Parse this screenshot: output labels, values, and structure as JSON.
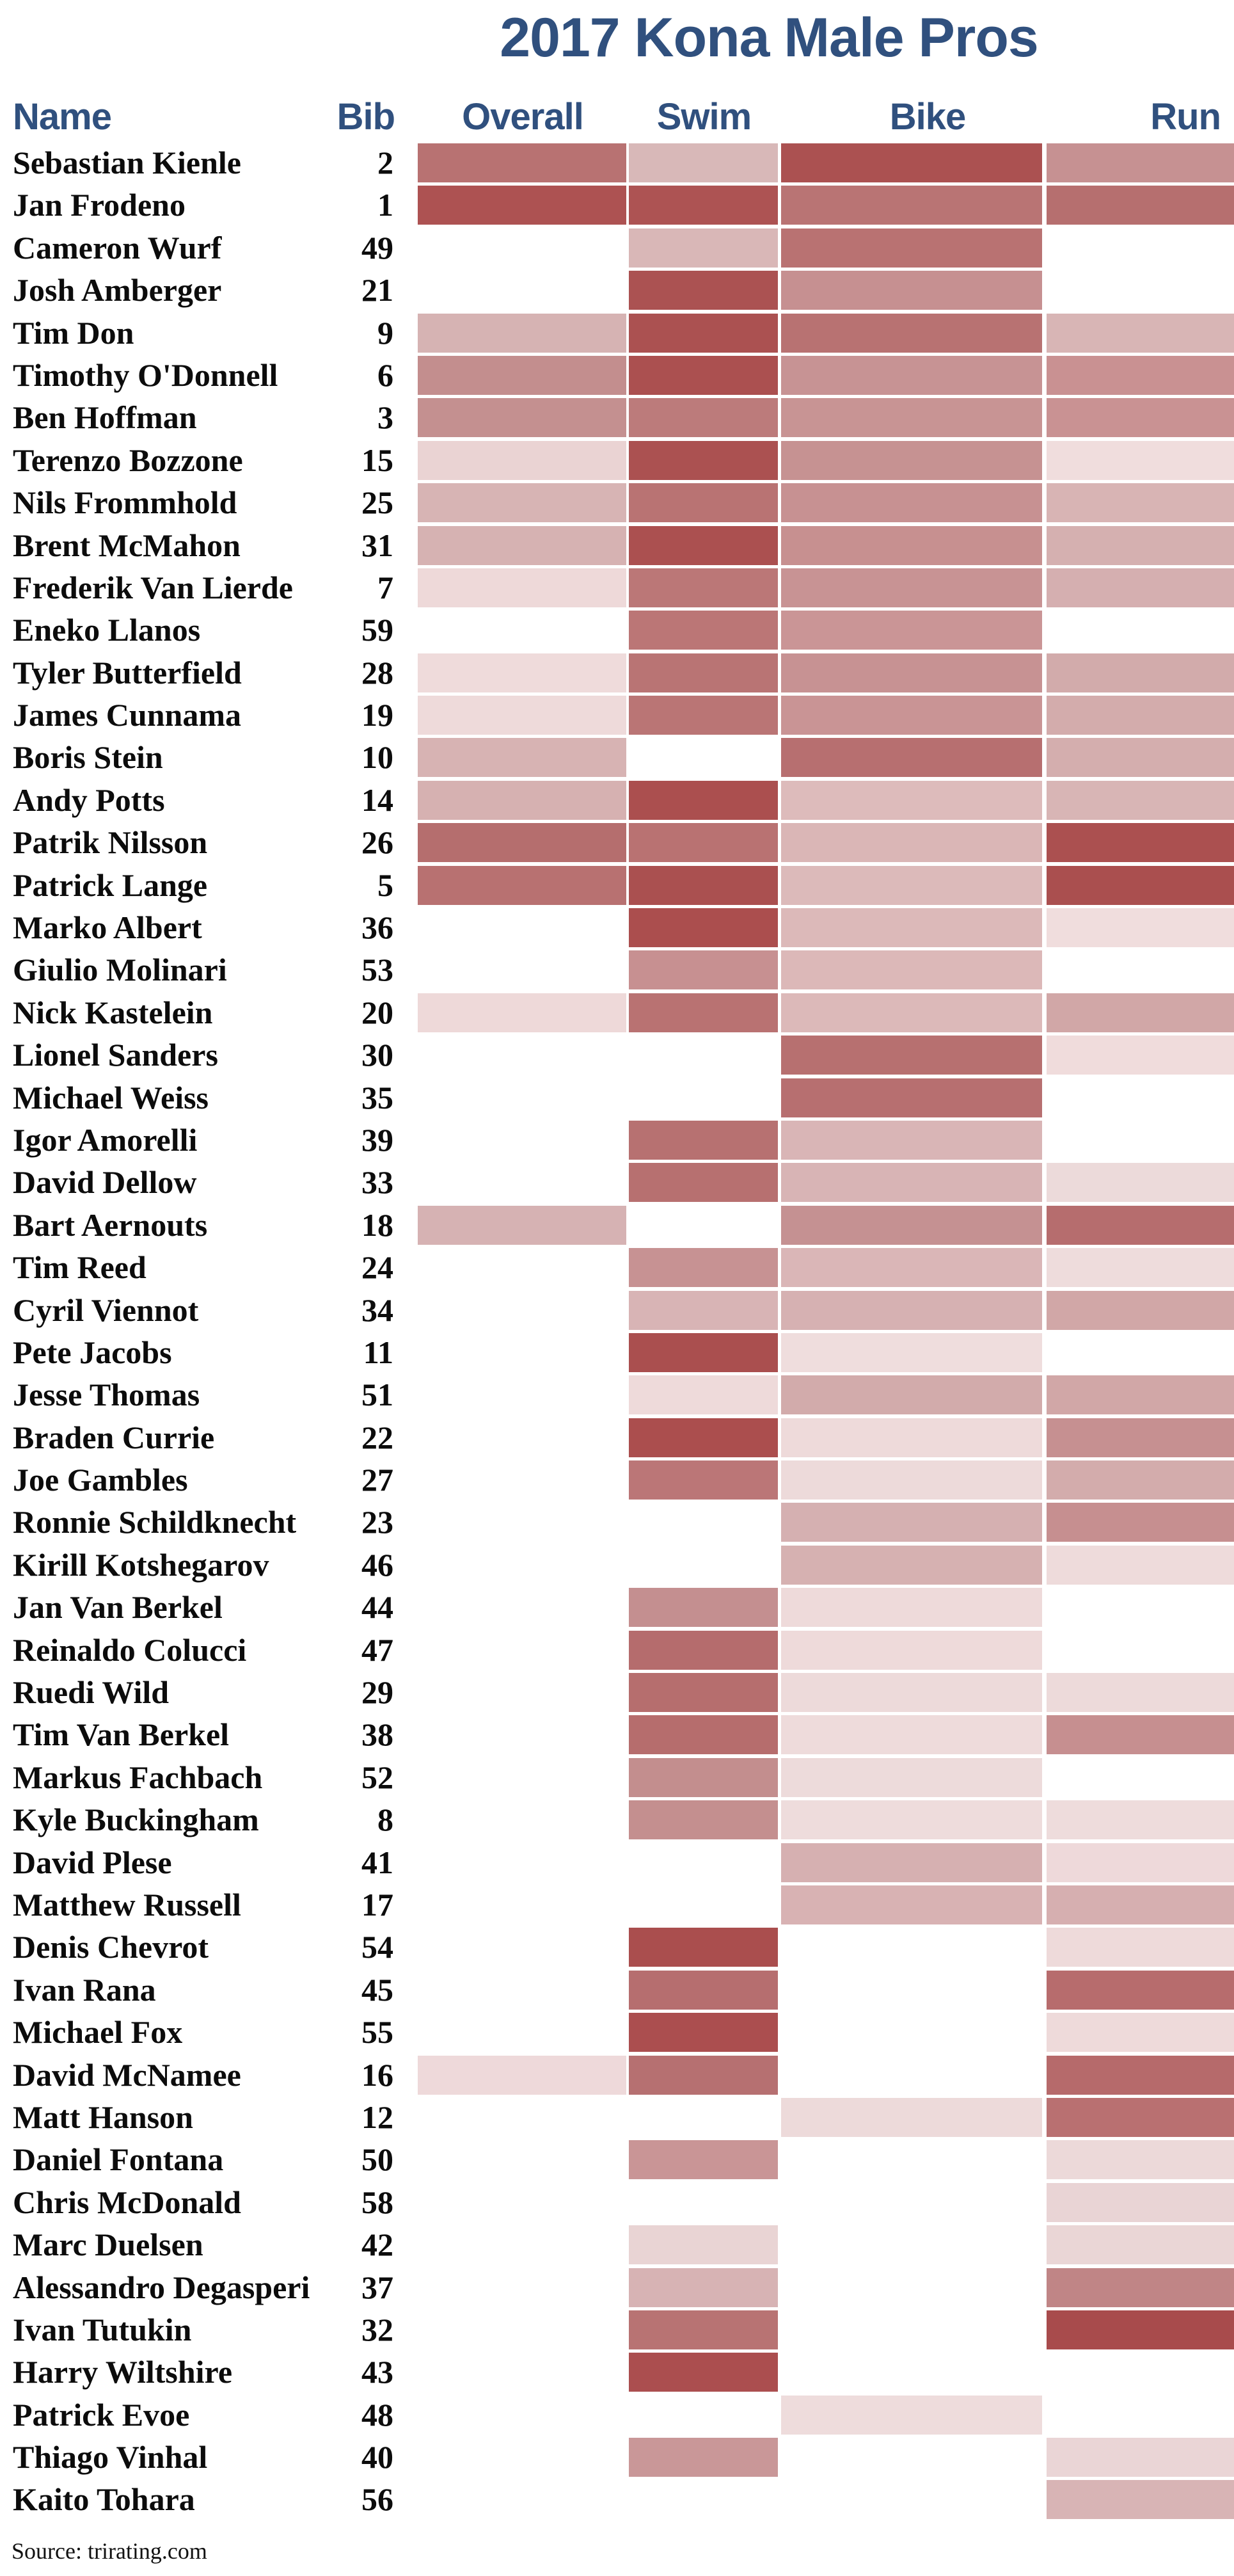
{
  "title": "2017 Kona Male Pros",
  "header": {
    "name": "Name",
    "bib": "Bib",
    "overall": "Overall",
    "swim": "Swim",
    "bike": "Bike",
    "run": "Run"
  },
  "source": "Source: trirating.com",
  "colors": {
    "heading_blue": "#30507e",
    "text_black": "#0c0c0c",
    "background": "#ffffff",
    "scale_min": "#f0dddd",
    "scale_max": "#a84b4c"
  },
  "chart_data": {
    "type": "heatmap",
    "title": "2017 Kona Male Pros",
    "columns": [
      "Overall",
      "Swim",
      "Bike",
      "Run"
    ],
    "legend_position": "none",
    "cell_encoding": "background hex color; null = no rating (blank cell); darker red = stronger rating",
    "rows": [
      {
        "name": "Sebastian Kienle",
        "bib": "2",
        "cells": {
          "overall": "#b87272",
          "swim": "#d8b8b8",
          "bike": "#ab5151",
          "run": "#c69192"
        }
      },
      {
        "name": "Jan Frodeno",
        "bib": "1",
        "cells": {
          "overall": "#ad5252",
          "swim": "#ad5353",
          "bike": "#b97474",
          "run": "#b66f6f"
        }
      },
      {
        "name": "Cameron Wurf",
        "bib": "49",
        "cells": {
          "overall": null,
          "swim": "#d9b7b7",
          "bike": "#b97272",
          "run": null
        }
      },
      {
        "name": "Josh Amberger",
        "bib": "21",
        "cells": {
          "overall": null,
          "swim": "#ab5252",
          "bike": "#c69091",
          "run": null
        }
      },
      {
        "name": "Tim Don",
        "bib": "9",
        "cells": {
          "overall": "#d6b3b3",
          "swim": "#ab5151",
          "bike": "#b87272",
          "run": "#d8b5b5"
        }
      },
      {
        "name": "Timothy O'Donnell",
        "bib": "6",
        "cells": {
          "overall": "#c38e8e",
          "swim": "#ab5050",
          "bike": "#c79394",
          "run": "#c99192"
        }
      },
      {
        "name": "Ben Hoffman",
        "bib": "3",
        "cells": {
          "overall": "#c49090",
          "swim": "#bc7b7b",
          "bike": "#c89494",
          "run": "#c99293"
        }
      },
      {
        "name": "Terenzo Bozzone",
        "bib": "15",
        "cells": {
          "overall": "#ead3d3",
          "swim": "#ab5151",
          "bike": "#c69292",
          "run": "#f0dddd"
        }
      },
      {
        "name": "Nils Frommhold",
        "bib": "25",
        "cells": {
          "overall": "#d7b4b4",
          "swim": "#b97373",
          "bike": "#c79192",
          "run": "#d8b4b4"
        }
      },
      {
        "name": "Brent McMahon",
        "bib": "31",
        "cells": {
          "overall": "#d6b2b2",
          "swim": "#ab5050",
          "bike": "#c79090",
          "run": "#d5b0b0"
        }
      },
      {
        "name": "Frederik Van Lierde",
        "bib": "7",
        "cells": {
          "overall": "#eed9d9",
          "swim": "#bb7777",
          "bike": "#c89394",
          "run": "#d5afb0"
        }
      },
      {
        "name": "Eneko Llanos",
        "bib": "59",
        "cells": {
          "overall": null,
          "swim": "#bb7676",
          "bike": "#ca9596",
          "run": null
        }
      },
      {
        "name": "Tyler Butterfield",
        "bib": "28",
        "cells": {
          "overall": "#efdbdb",
          "swim": "#b97474",
          "bike": "#c79293",
          "run": "#d2abab"
        }
      },
      {
        "name": "James Cunnama",
        "bib": "19",
        "cells": {
          "overall": "#eedada",
          "swim": "#ba7575",
          "bike": "#c99495",
          "run": "#d3acac"
        }
      },
      {
        "name": "Boris Stein",
        "bib": "10",
        "cells": {
          "overall": "#d7b3b3",
          "swim": null,
          "bike": "#b76f70",
          "run": "#d4aeae"
        }
      },
      {
        "name": "Andy Potts",
        "bib": "14",
        "cells": {
          "overall": "#d6b1b1",
          "swim": "#ab4f4f",
          "bike": "#ddbbbb",
          "run": "#d8b5b5"
        }
      },
      {
        "name": "Patrik Nilsson",
        "bib": "26",
        "cells": {
          "overall": "#b56e6e",
          "swim": "#b97272",
          "bike": "#dab6b6",
          "run": "#ab5050"
        }
      },
      {
        "name": "Patrick Lange",
        "bib": "5",
        "cells": {
          "overall": "#b87171",
          "swim": "#aa5050",
          "bike": "#dcbaba",
          "run": "#aa4f4f"
        }
      },
      {
        "name": "Marko Albert",
        "bib": "36",
        "cells": {
          "overall": null,
          "swim": "#ab4e4e",
          "bike": "#dcb9b9",
          "run": "#f0dddd"
        }
      },
      {
        "name": "Giulio Molinari",
        "bib": "53",
        "cells": {
          "overall": null,
          "swim": "#c79091",
          "bike": "#dcb8b8",
          "run": null
        }
      },
      {
        "name": "Nick Kastelein",
        "bib": "20",
        "cells": {
          "overall": "#eed9d9",
          "swim": "#b97272",
          "bike": "#dcb9b9",
          "run": "#d1a7a7"
        }
      },
      {
        "name": "Lionel Sanders",
        "bib": "30",
        "cells": {
          "overall": null,
          "swim": null,
          "bike": "#b77070",
          "run": "#f0dcdc"
        }
      },
      {
        "name": "Michael Weiss",
        "bib": "35",
        "cells": {
          "overall": null,
          "swim": null,
          "bike": "#b76f70",
          "run": null
        }
      },
      {
        "name": "Igor Amorelli",
        "bib": "39",
        "cells": {
          "overall": null,
          "swim": "#b77171",
          "bike": "#d9b5b6",
          "run": null
        }
      },
      {
        "name": "David Dellow",
        "bib": "33",
        "cells": {
          "overall": null,
          "swim": "#b77070",
          "bike": "#d8b4b5",
          "run": "#ecdada"
        }
      },
      {
        "name": "Bart Aernouts",
        "bib": "18",
        "cells": {
          "overall": "#d6b2b3",
          "swim": null,
          "bike": "#c59192",
          "run": "#b66d6e"
        }
      },
      {
        "name": "Tim Reed",
        "bib": "24",
        "cells": {
          "overall": null,
          "swim": "#c79293",
          "bike": "#dab6b7",
          "run": "#eedcdc"
        }
      },
      {
        "name": "Cyril Viennot",
        "bib": "34",
        "cells": {
          "overall": null,
          "swim": "#d8b4b5",
          "bike": "#d6b1b2",
          "run": "#d1a7a7"
        }
      },
      {
        "name": "Pete Jacobs",
        "bib": "11",
        "cells": {
          "overall": null,
          "swim": "#aa4f4f",
          "bike": "#efdddd",
          "run": null
        }
      },
      {
        "name": "Jesse Thomas",
        "bib": "51",
        "cells": {
          "overall": null,
          "swim": "#eedada",
          "bike": "#d2abab",
          "run": "#d1a7a7"
        }
      },
      {
        "name": "Braden Currie",
        "bib": "22",
        "cells": {
          "overall": null,
          "swim": "#ab4e4e",
          "bike": "#eedada",
          "run": "#c69091"
        }
      },
      {
        "name": "Joe Gambles",
        "bib": "27",
        "cells": {
          "overall": null,
          "swim": "#bb7677",
          "bike": "#eddada",
          "run": "#d3acac"
        }
      },
      {
        "name": "Ronnie Schildknecht",
        "bib": "23",
        "cells": {
          "overall": null,
          "swim": null,
          "bike": "#d5b0b1",
          "run": "#c68f90"
        }
      },
      {
        "name": "Kirill Kotshegarov",
        "bib": "46",
        "cells": {
          "overall": null,
          "swim": null,
          "bike": "#d6b1b1",
          "run": "#eedbdb"
        }
      },
      {
        "name": "Jan Van Berkel",
        "bib": "44",
        "cells": {
          "overall": null,
          "swim": "#c48f90",
          "bike": "#eedada",
          "run": null
        }
      },
      {
        "name": "Reinaldo Colucci",
        "bib": "47",
        "cells": {
          "overall": null,
          "swim": "#b56c6d",
          "bike": "#eedada",
          "run": null
        }
      },
      {
        "name": "Ruedi Wild",
        "bib": "29",
        "cells": {
          "overall": null,
          "swim": "#b66e6e",
          "bike": "#eddada",
          "run": "#eddada"
        }
      },
      {
        "name": "Tim Van Berkel",
        "bib": "38",
        "cells": {
          "overall": null,
          "swim": "#b66d6d",
          "bike": "#eedbdb",
          "run": "#c68f90"
        }
      },
      {
        "name": "Markus Fachbach",
        "bib": "52",
        "cells": {
          "overall": null,
          "swim": "#c38e8e",
          "bike": "#eddbdb",
          "run": null
        }
      },
      {
        "name": "Kyle Buckingham",
        "bib": "8",
        "cells": {
          "overall": null,
          "swim": "#c48f8f",
          "bike": "#eedcdc",
          "run": "#eedcdc"
        }
      },
      {
        "name": "David Plese",
        "bib": "41",
        "cells": {
          "overall": null,
          "swim": null,
          "bike": "#d6b0b1",
          "run": "#eed9da"
        }
      },
      {
        "name": "Matthew Russell",
        "bib": "17",
        "cells": {
          "overall": null,
          "swim": null,
          "bike": "#d8b2b3",
          "run": "#d6afb0"
        }
      },
      {
        "name": "Denis Chevrot",
        "bib": "54",
        "cells": {
          "overall": null,
          "swim": "#aa4e4e",
          "bike": null,
          "run": "#eedada"
        }
      },
      {
        "name": "Ivan Rana",
        "bib": "45",
        "cells": {
          "overall": null,
          "swim": "#b66e6f",
          "bike": null,
          "run": "#b76c6d"
        }
      },
      {
        "name": "Michael Fox",
        "bib": "55",
        "cells": {
          "overall": null,
          "swim": "#ab4e4f",
          "bike": null,
          "run": "#eedada"
        }
      },
      {
        "name": "David McNamee",
        "bib": "16",
        "cells": {
          "overall": "#eed9da",
          "swim": "#b67071",
          "bike": null,
          "run": "#b66a6b"
        }
      },
      {
        "name": "Matt Hanson",
        "bib": "12",
        "cells": {
          "overall": null,
          "swim": null,
          "bike": "#eddada",
          "run": "#b97071"
        }
      },
      {
        "name": "Daniel Fontana",
        "bib": "50",
        "cells": {
          "overall": null,
          "swim": "#c99596",
          "bike": null,
          "run": "#ecd9d9"
        }
      },
      {
        "name": "Chris McDonald",
        "bib": "58",
        "cells": {
          "overall": null,
          "swim": null,
          "bike": null,
          "run": "#e9d4d5"
        }
      },
      {
        "name": "Marc Duelsen",
        "bib": "42",
        "cells": {
          "overall": null,
          "swim": "#e9d4d4",
          "bike": null,
          "run": "#ead6d6"
        }
      },
      {
        "name": "Alessandro Degasperi",
        "bib": "37",
        "cells": {
          "overall": null,
          "swim": "#d7b3b4",
          "bike": null,
          "run": "#c08586"
        }
      },
      {
        "name": "Ivan Tutukin",
        "bib": "32",
        "cells": {
          "overall": null,
          "swim": "#b87373",
          "bike": null,
          "run": "#a84b4c"
        }
      },
      {
        "name": "Harry Wiltshire",
        "bib": "43",
        "cells": {
          "overall": null,
          "swim": "#ab4e4f",
          "bike": null,
          "run": null
        }
      },
      {
        "name": "Patrick Evoe",
        "bib": "48",
        "cells": {
          "overall": null,
          "swim": null,
          "bike": "#eedcdc",
          "run": null
        }
      },
      {
        "name": "Thiago Vinhal",
        "bib": "40",
        "cells": {
          "overall": null,
          "swim": "#c99798",
          "bike": null,
          "run": "#ead5d6"
        }
      },
      {
        "name": "Kaito Tohara",
        "bib": "56",
        "cells": {
          "overall": null,
          "swim": null,
          "bike": null,
          "run": "#d8b4b5"
        }
      }
    ]
  }
}
